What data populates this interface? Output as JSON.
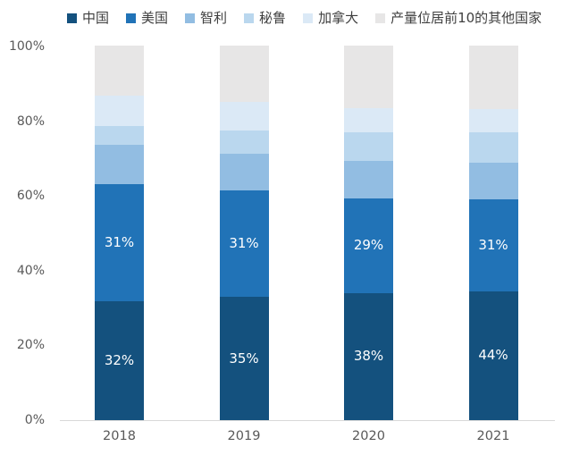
{
  "chart_data": {
    "type": "bar",
    "stacked": true,
    "unit": "%",
    "legend_position": "top",
    "categories": [
      "2018",
      "2019",
      "2020",
      "2021"
    ],
    "y_axis": {
      "ticks": [
        "100%",
        "80%",
        "60%",
        "40%",
        "20%",
        "0%"
      ],
      "range": [
        0,
        100
      ],
      "gridlines": false
    },
    "axis_line_color": "#d9d9d9",
    "tick_text_color": "#595959",
    "legend_text_color": "#3f3f3f",
    "data_label_color": "#ffffff",
    "series": [
      {
        "name": "中国",
        "color": "#14517e",
        "values": [
          32,
          35,
          38,
          44
        ],
        "data_labels": [
          "32%",
          "35%",
          "38%",
          "44%"
        ],
        "drawn_heights_pct": [
          31.7,
          32.9,
          34.0,
          34.4
        ]
      },
      {
        "name": "美国",
        "color": "#2173b7",
        "values": [
          31,
          31,
          29,
          31
        ],
        "data_labels": [
          "31%",
          "31%",
          "29%",
          "31%"
        ],
        "drawn_heights_pct": [
          31.3,
          28.5,
          25.3,
          24.6
        ]
      },
      {
        "name": "智利",
        "color": "#92bde2",
        "values": [
          10,
          10,
          10,
          10
        ],
        "data_labels": null,
        "drawn_heights_pct": [
          10.4,
          9.7,
          10.0,
          9.7
        ]
      },
      {
        "name": "秘鲁",
        "color": "#bad7ee",
        "values": [
          5,
          6,
          8,
          8
        ],
        "data_labels": null,
        "drawn_heights_pct": [
          5.1,
          6.2,
          7.6,
          8.1
        ]
      },
      {
        "name": "加拿大",
        "color": "#dbe9f6",
        "values": [
          8,
          8,
          6,
          6
        ],
        "data_labels": null,
        "drawn_heights_pct": [
          8.2,
          7.6,
          6.4,
          6.2
        ]
      },
      {
        "name": "产量位居前10的其他国家",
        "color": "#e7e6e6",
        "values": [
          13,
          15,
          17,
          17
        ],
        "data_labels": null,
        "drawn_heights_pct": [
          13.3,
          15.1,
          16.7,
          17.0
        ]
      }
    ]
  }
}
